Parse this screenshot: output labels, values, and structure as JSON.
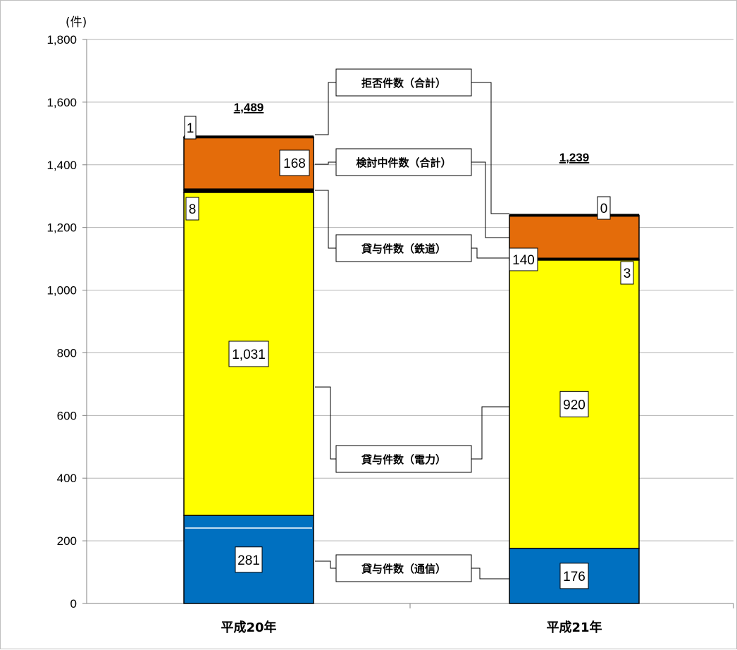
{
  "chart_data": {
    "type": "bar",
    "stacked": true,
    "unit_label": "(件)",
    "categories": [
      "平成20年",
      "平成21年"
    ],
    "ylim": [
      0,
      1800
    ],
    "yticks": [
      0,
      200,
      400,
      600,
      800,
      1000,
      1200,
      1400,
      1600,
      1800
    ],
    "ytick_labels": [
      "0",
      "200",
      "400",
      "600",
      "800",
      "1,000",
      "1,200",
      "1,400",
      "1,600",
      "1,800"
    ],
    "grid": true,
    "series": [
      {
        "name": "貸与件数（通信）",
        "values": [
          281,
          176
        ],
        "labels": [
          "281",
          "176"
        ],
        "color": "#0070c0"
      },
      {
        "name": "貸与件数（電力）",
        "values": [
          1031,
          920
        ],
        "labels": [
          "1,031",
          "920"
        ],
        "color": "#ffff00"
      },
      {
        "name": "貸与件数（鉄道）",
        "values": [
          8,
          3
        ],
        "labels": [
          "8",
          "3"
        ],
        "color": "#000000"
      },
      {
        "name": "検討中件数（合計）",
        "values": [
          168,
          140
        ],
        "labels": [
          "168",
          "140"
        ],
        "color": "#e46c0a"
      },
      {
        "name": "拒否件数（合計）",
        "values": [
          1,
          0
        ],
        "labels": [
          "1",
          "0"
        ],
        "color": "#000000"
      }
    ],
    "totals": [
      1489,
      1239
    ],
    "total_labels": [
      "1,489",
      "1,239"
    ]
  }
}
